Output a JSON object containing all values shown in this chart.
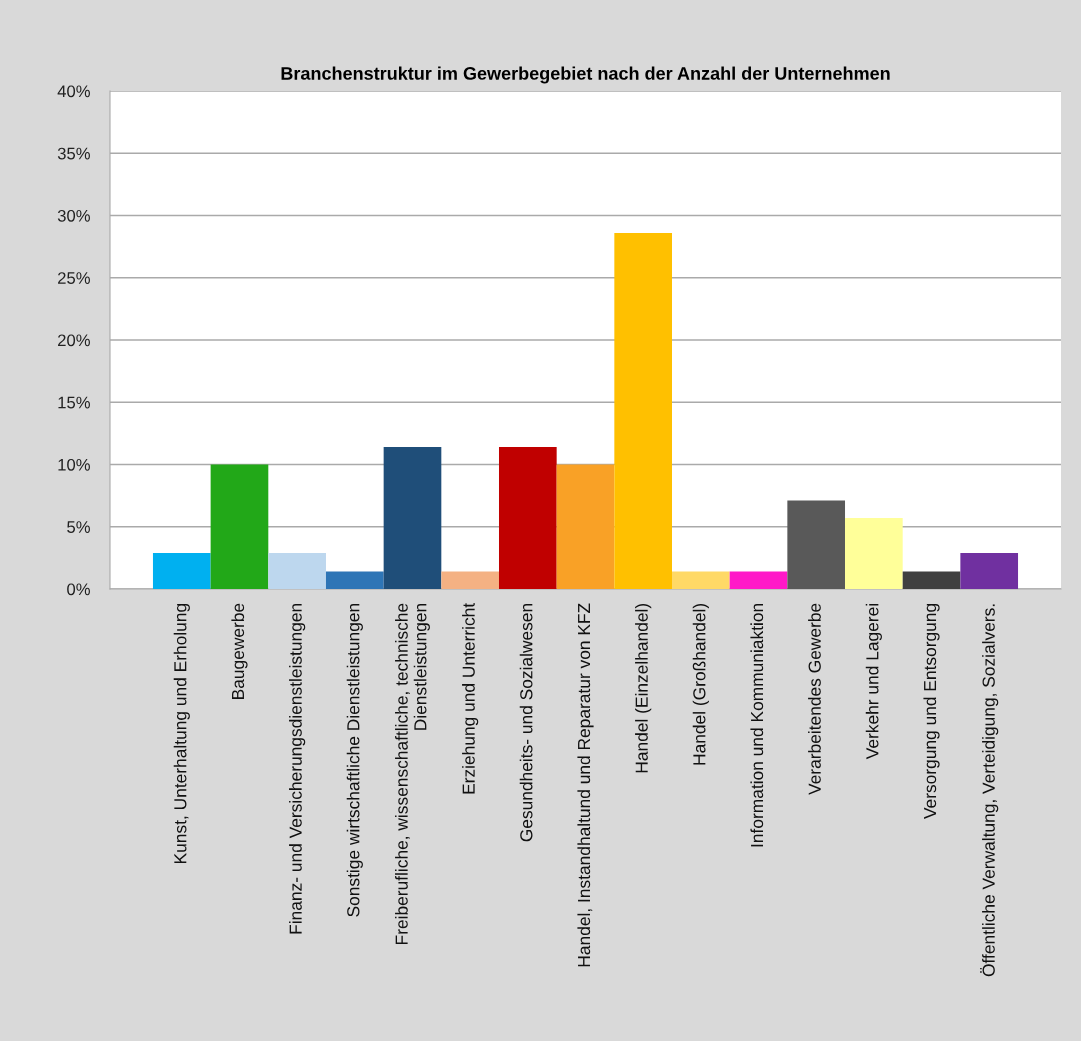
{
  "chart_data": {
    "type": "bar",
    "title": "Branchenstruktur im Gewerbegebiet nach der Anzahl der Unternehmen",
    "categories": [
      "Kunst, Unterhaltung und Erholung",
      "Baugewerbe",
      "Finanz- und Versicherungsdienstleistungen",
      "Sonstige wirtschaftliche Dienstleistungen",
      "Freiberufliche, wissenschaftliche, technische\nDienstleistungen",
      "Erziehung und Unterricht",
      "Gesundheits- und Sozialwesen",
      "Handel, Instandhaltund und Reparatur von KFZ",
      "Handel (Einzelhandel)",
      "Handel (Großhandel)",
      "Information und Kommuniaktion",
      "Verarbeitendes Gewerbe",
      "Verkehr und Lagerei",
      "Versorgung und Entsorgung",
      "Öffentliche Verwaltung, Verteidigung, Sozialvers."
    ],
    "values": [
      2.9,
      10,
      2.9,
      1.4,
      11.4,
      1.4,
      11.4,
      10,
      28.6,
      1.4,
      1.4,
      7.1,
      5.7,
      1.4,
      2.9
    ],
    "colors": [
      "#00b0f0",
      "#22a818",
      "#bdd7ee",
      "#2e75b6",
      "#1f4e79",
      "#f4b183",
      "#c00000",
      "#f9a126",
      "#ffc000",
      "#ffd966",
      "#ff19c8",
      "#595959",
      "#ffff99",
      "#404040",
      "#7030a0"
    ],
    "ylim": [
      0,
      40
    ],
    "yticks": [
      {
        "value": 0,
        "label": "0%"
      },
      {
        "value": 5,
        "label": "5%"
      },
      {
        "value": 10,
        "label": "10%"
      },
      {
        "value": 15,
        "label": "15%"
      },
      {
        "value": 20,
        "label": "20%"
      },
      {
        "value": 25,
        "label": "25%"
      },
      {
        "value": 30,
        "label": "30%"
      },
      {
        "value": 35,
        "label": "35%"
      },
      {
        "value": 40,
        "label": "40%"
      }
    ],
    "grid": "y",
    "legend": false
  }
}
